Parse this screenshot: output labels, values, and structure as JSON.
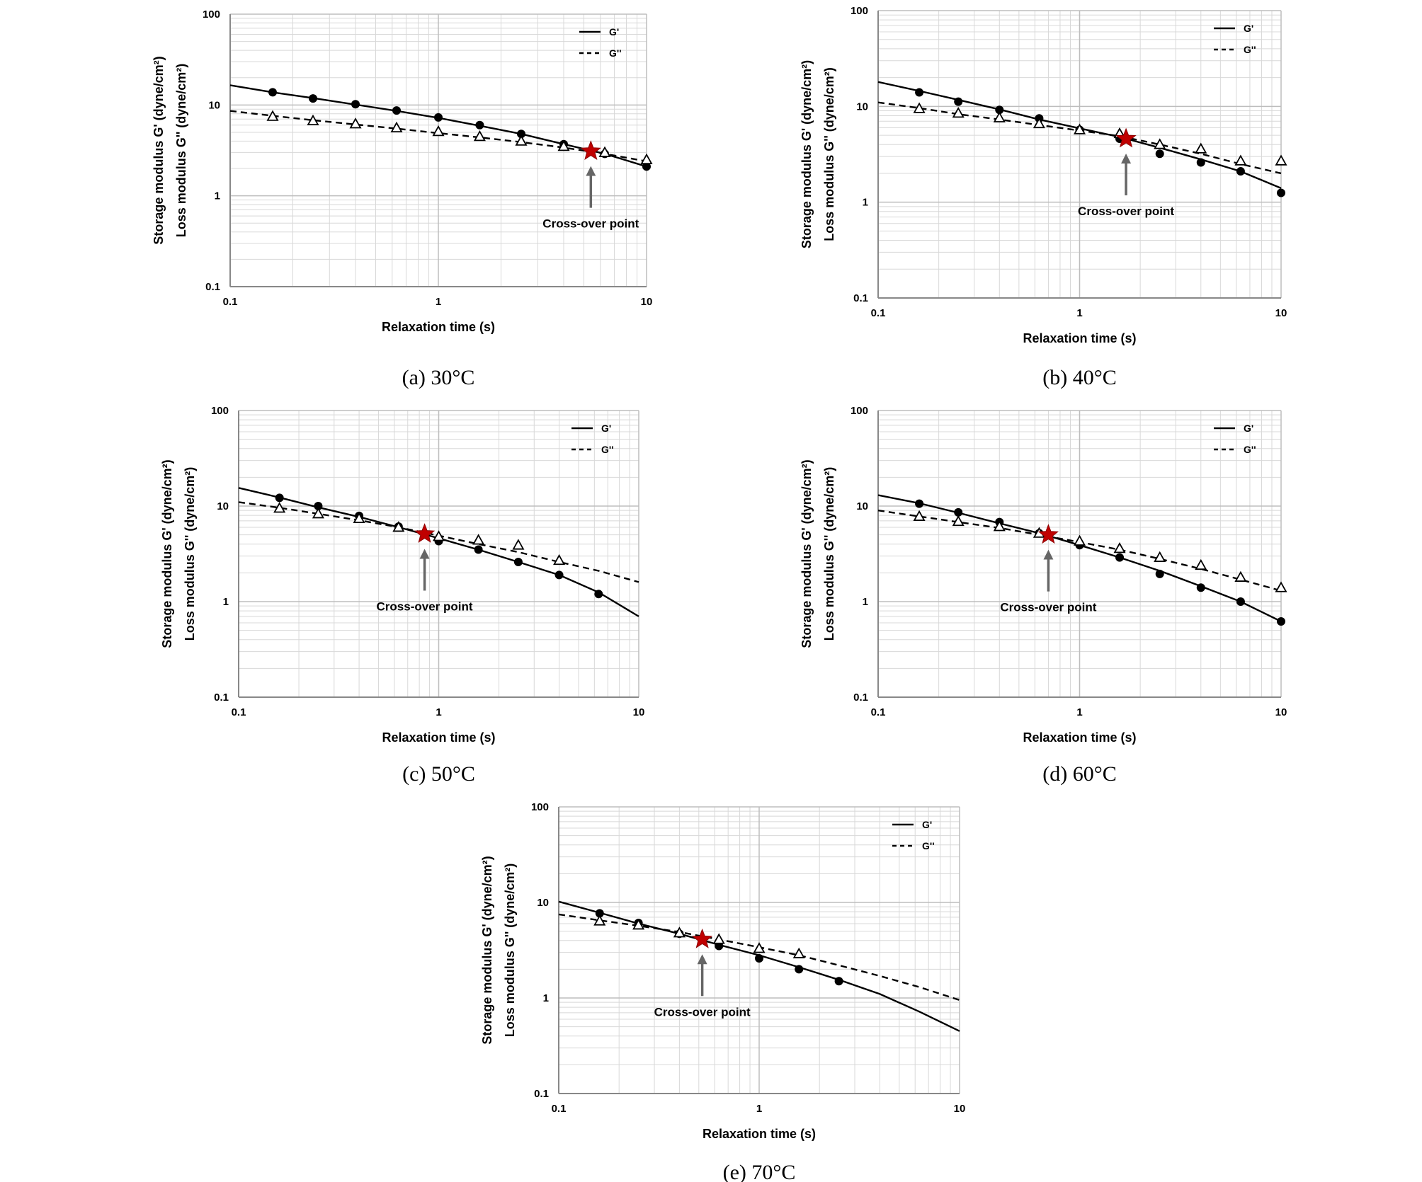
{
  "chart_data": [
    {
      "type": "line",
      "caption": "(a) 30°C",
      "xlabel": "Relaxation time (s)",
      "ylabel_1": "Storage modulus G' (dyne/cm²)",
      "ylabel_2": "Loss modulus G'' (dyne/cm²)",
      "xscale": "log",
      "yscale": "log",
      "xlim": [
        0.1,
        10
      ],
      "ylim": [
        0.1,
        100
      ],
      "x_ticks": [
        "0.1",
        "1",
        "10"
      ],
      "y_ticks": [
        "0.1",
        "1",
        "10",
        "100"
      ],
      "grid": true,
      "legend_position": "top-right",
      "series": [
        {
          "name": "G'",
          "style": "solid",
          "marker": "filled-circle",
          "curve_x": [
            0.1,
            0.16,
            0.25,
            0.4,
            0.63,
            1,
            1.58,
            2.5,
            4,
            6.3,
            10
          ],
          "curve_y": [
            16.5,
            13.8,
            11.9,
            10.1,
            8.6,
            7.2,
            5.9,
            4.8,
            3.7,
            2.9,
            2.1
          ],
          "marker_x": [
            0.16,
            0.25,
            0.4,
            0.63,
            1,
            1.58,
            2.5,
            4,
            6.3,
            10
          ],
          "marker_y": [
            13.8,
            11.8,
            10.2,
            8.7,
            7.3,
            6.0,
            4.8,
            3.7,
            2.9,
            2.1
          ]
        },
        {
          "name": "G''",
          "style": "dashed",
          "marker": "open-triangle",
          "curve_x": [
            0.1,
            0.16,
            0.25,
            0.4,
            0.63,
            1,
            1.58,
            2.5,
            4,
            6.3,
            10
          ],
          "curve_y": [
            8.6,
            7.6,
            6.8,
            6.1,
            5.5,
            4.9,
            4.4,
            3.9,
            3.4,
            2.9,
            2.4
          ],
          "marker_x": [
            0.16,
            0.25,
            0.4,
            0.63,
            1,
            1.58,
            2.5,
            4,
            6.3,
            10
          ],
          "marker_y": [
            7.5,
            6.7,
            6.2,
            5.6,
            5.1,
            4.5,
            4.0,
            3.5,
            3.0,
            2.5
          ]
        }
      ],
      "crossover": {
        "x": 5.4,
        "y": 3.1,
        "label": "Cross-over point"
      }
    },
    {
      "type": "line",
      "caption": "(b) 40°C",
      "xlabel": "Relaxation time (s)",
      "ylabel_1": "Storage modulus G' (dyne/cm²)",
      "ylabel_2": "Loss modulus G'' (dyne/cm²)",
      "xscale": "log",
      "yscale": "log",
      "xlim": [
        0.1,
        10
      ],
      "ylim": [
        0.1,
        100
      ],
      "x_ticks": [
        "0.1",
        "1",
        "10"
      ],
      "y_ticks": [
        "0.1",
        "1",
        "10",
        "100"
      ],
      "grid": true,
      "legend_position": "top-right",
      "series": [
        {
          "name": "G'",
          "style": "solid",
          "marker": "filled-circle",
          "curve_x": [
            0.1,
            0.16,
            0.25,
            0.4,
            0.63,
            1,
            1.58,
            2.5,
            4,
            6.3,
            10
          ],
          "curve_y": [
            18.0,
            14.5,
            11.7,
            9.3,
            7.3,
            5.9,
            4.8,
            3.7,
            2.8,
            2.1,
            1.4
          ],
          "marker_x": [
            0.16,
            0.25,
            0.4,
            0.63,
            1,
            1.58,
            2.5,
            4,
            6.3,
            10
          ],
          "marker_y": [
            14.0,
            11.2,
            9.2,
            7.5,
            5.7,
            4.6,
            3.2,
            2.6,
            2.1,
            1.25
          ]
        },
        {
          "name": "G''",
          "style": "dashed",
          "marker": "open-triangle",
          "curve_x": [
            0.1,
            0.16,
            0.25,
            0.4,
            0.63,
            1,
            1.58,
            2.5,
            4,
            6.3,
            10
          ],
          "curve_y": [
            11.0,
            9.6,
            8.3,
            7.3,
            6.4,
            5.6,
            4.9,
            4.0,
            3.2,
            2.5,
            2.0
          ],
          "marker_x": [
            0.16,
            0.25,
            0.4,
            0.63,
            1,
            1.58,
            2.5,
            4,
            6.3,
            10
          ],
          "marker_y": [
            9.5,
            8.5,
            7.6,
            6.6,
            5.7,
            5.2,
            4.0,
            3.6,
            2.7,
            2.7
          ]
        }
      ],
      "crossover": {
        "x": 1.7,
        "y": 4.6,
        "label": "Cross-over point"
      }
    },
    {
      "type": "line",
      "caption": "(c) 50°C",
      "xlabel": "Relaxation time (s)",
      "ylabel_1": "Storage modulus G' (dyne/cm²)",
      "ylabel_2": "Loss modulus G'' (dyne/cm²)",
      "xscale": "log",
      "yscale": "log",
      "xlim": [
        0.1,
        10
      ],
      "ylim": [
        0.1,
        100
      ],
      "x_ticks": [
        "0.1",
        "1",
        "10"
      ],
      "y_ticks": [
        "0.1",
        "1",
        "10",
        "100"
      ],
      "grid": true,
      "legend_position": "top-right",
      "series": [
        {
          "name": "G'",
          "style": "solid",
          "marker": "filled-circle",
          "curve_x": [
            0.1,
            0.16,
            0.25,
            0.4,
            0.63,
            1,
            1.58,
            2.5,
            4,
            6.3,
            10
          ],
          "curve_y": [
            15.5,
            12.3,
            9.7,
            7.7,
            6.0,
            4.6,
            3.5,
            2.6,
            1.9,
            1.25,
            0.7
          ],
          "marker_x": [
            0.16,
            0.25,
            0.4,
            0.63,
            1,
            1.58,
            2.5,
            4,
            6.3
          ],
          "marker_y": [
            12.2,
            10.0,
            7.9,
            6.1,
            4.3,
            3.5,
            2.6,
            1.9,
            1.2
          ]
        },
        {
          "name": "G''",
          "style": "dashed",
          "marker": "open-triangle",
          "curve_x": [
            0.1,
            0.16,
            0.25,
            0.4,
            0.63,
            1,
            1.58,
            2.5,
            4,
            6.3,
            10
          ],
          "curve_y": [
            11.0,
            9.6,
            8.3,
            7.1,
            6.0,
            4.9,
            4.0,
            3.3,
            2.6,
            2.1,
            1.6
          ],
          "marker_x": [
            0.16,
            0.25,
            0.4,
            0.63,
            1,
            1.58,
            2.5,
            4
          ],
          "marker_y": [
            9.5,
            8.3,
            7.4,
            6.0,
            4.8,
            4.4,
            3.9,
            2.7
          ]
        }
      ],
      "crossover": {
        "x": 0.85,
        "y": 5.1,
        "label": "Cross-over point"
      }
    },
    {
      "type": "line",
      "caption": "(d) 60°C",
      "xlabel": "Relaxation time (s)",
      "ylabel_1": "Storage modulus G' (dyne/cm²)",
      "ylabel_2": "Loss modulus G'' (dyne/cm²)",
      "xscale": "log",
      "yscale": "log",
      "xlim": [
        0.1,
        10
      ],
      "ylim": [
        0.1,
        100
      ],
      "x_ticks": [
        "0.1",
        "1",
        "10"
      ],
      "y_ticks": [
        "0.1",
        "1",
        "10",
        "100"
      ],
      "grid": true,
      "legend_position": "top-right",
      "series": [
        {
          "name": "G'",
          "style": "solid",
          "marker": "filled-circle",
          "curve_x": [
            0.1,
            0.16,
            0.25,
            0.4,
            0.63,
            1,
            1.58,
            2.5,
            4,
            6.3,
            10
          ],
          "curve_y": [
            13.0,
            10.7,
            8.5,
            6.6,
            5.2,
            3.9,
            2.9,
            2.1,
            1.45,
            1.0,
            0.62
          ],
          "marker_x": [
            0.16,
            0.25,
            0.4,
            0.63,
            1,
            1.58,
            2.5,
            4,
            6.3,
            10
          ],
          "marker_y": [
            10.6,
            8.6,
            6.8,
            5.2,
            3.9,
            2.9,
            1.95,
            1.4,
            1.0,
            0.62
          ]
        },
        {
          "name": "G''",
          "style": "dashed",
          "marker": "open-triangle",
          "curve_x": [
            0.1,
            0.16,
            0.25,
            0.4,
            0.63,
            1,
            1.58,
            2.5,
            4,
            6.3,
            10
          ],
          "curve_y": [
            9.0,
            7.8,
            6.8,
            5.9,
            5.0,
            4.2,
            3.5,
            2.8,
            2.2,
            1.7,
            1.3
          ],
          "marker_x": [
            0.16,
            0.25,
            0.4,
            0.63,
            1,
            1.58,
            2.5,
            4,
            6.3,
            10
          ],
          "marker_y": [
            7.8,
            6.9,
            6.1,
            5.2,
            4.3,
            3.6,
            2.9,
            2.4,
            1.8,
            1.4
          ]
        }
      ],
      "crossover": {
        "x": 0.7,
        "y": 5.0,
        "label": "Cross-over point"
      }
    },
    {
      "type": "line",
      "caption": "(e) 70°C",
      "xlabel": "Relaxation time (s)",
      "ylabel_1": "Storage modulus G' (dyne/cm²)",
      "ylabel_2": "Loss modulus G'' (dyne/cm²)",
      "xscale": "log",
      "yscale": "log",
      "xlim": [
        0.1,
        10
      ],
      "ylim": [
        0.1,
        100
      ],
      "x_ticks": [
        "0.1",
        "1",
        "10"
      ],
      "y_ticks": [
        "0.1",
        "1",
        "10",
        "100"
      ],
      "grid": true,
      "legend_position": "top-right",
      "series": [
        {
          "name": "G'",
          "style": "solid",
          "marker": "filled-circle",
          "curve_x": [
            0.1,
            0.16,
            0.25,
            0.4,
            0.63,
            1,
            1.58,
            2.5,
            4,
            6.3,
            10
          ],
          "curve_y": [
            10.2,
            7.8,
            6.0,
            4.7,
            3.6,
            2.8,
            2.1,
            1.55,
            1.1,
            0.72,
            0.45
          ],
          "marker_x": [
            0.16,
            0.25,
            0.4,
            0.63,
            1,
            1.58,
            2.5
          ],
          "marker_y": [
            7.7,
            6.1,
            4.7,
            3.5,
            2.6,
            2.0,
            1.5
          ]
        },
        {
          "name": "G''",
          "style": "dashed",
          "marker": "open-triangle",
          "curve_x": [
            0.1,
            0.16,
            0.25,
            0.4,
            0.63,
            1,
            1.58,
            2.5,
            4,
            6.3,
            10
          ],
          "curve_y": [
            7.5,
            6.5,
            5.7,
            4.9,
            4.1,
            3.4,
            2.8,
            2.2,
            1.7,
            1.3,
            0.95
          ],
          "marker_x": [
            0.16,
            0.25,
            0.4,
            0.63,
            1,
            1.58
          ],
          "marker_y": [
            6.4,
            5.8,
            4.8,
            4.1,
            3.3,
            2.9
          ]
        }
      ],
      "crossover": {
        "x": 0.52,
        "y": 4.1,
        "label": "Cross-over point"
      }
    }
  ],
  "colors": {
    "line": "#000000",
    "grid": "#d8d8d8",
    "axis": "#888888",
    "star": "#c00000",
    "arrow": "#666666"
  }
}
